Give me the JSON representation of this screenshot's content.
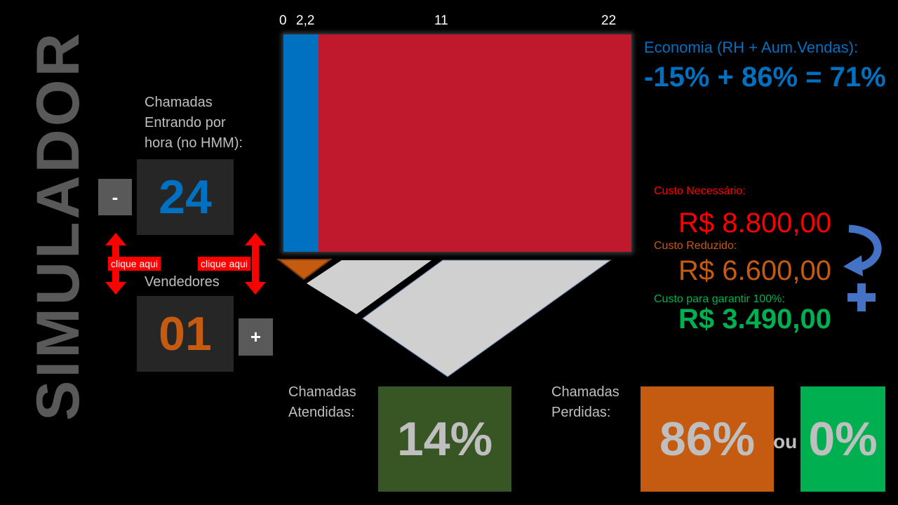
{
  "title": "SIMULADOR",
  "calls": {
    "label_line1": "Chamadas",
    "label_line2": "Entrando por",
    "label_line3": "hora (no HMM):",
    "value": "24",
    "minus_label": "-"
  },
  "sellers": {
    "label": "Vendedores",
    "value": "01",
    "plus_label": "+"
  },
  "click_hint": "clique aqui",
  "bar": {
    "ticks": [
      "0",
      "2,2",
      "11",
      "22"
    ],
    "blue_value": 2.2,
    "max_value": 22,
    "colors": {
      "blue": "#0070c0",
      "red": "#c0192d",
      "orange": "#c55a11",
      "gray": "#d0d0d0"
    }
  },
  "economy": {
    "label": "Economia (RH + Aum.Vendas):",
    "formula": "-15% + 86% = 71%"
  },
  "costs": {
    "needed_label": "Custo Necessário:",
    "needed_value": "R$ 8.800,00",
    "reduced_label": "Custo Reduzido:",
    "reduced_value": "R$ 6.600,00",
    "guarantee_label": "Custo para garantir 100%:",
    "guarantee_value": "R$ 3.490,00"
  },
  "answered": {
    "label_line1": "Chamadas",
    "label_line2": "Atendidas:",
    "value": "14%"
  },
  "lost": {
    "label_line1": "Chamadas",
    "label_line2": "Perdidas:",
    "value": "86%",
    "or": "ou",
    "alt_value": "0%"
  }
}
